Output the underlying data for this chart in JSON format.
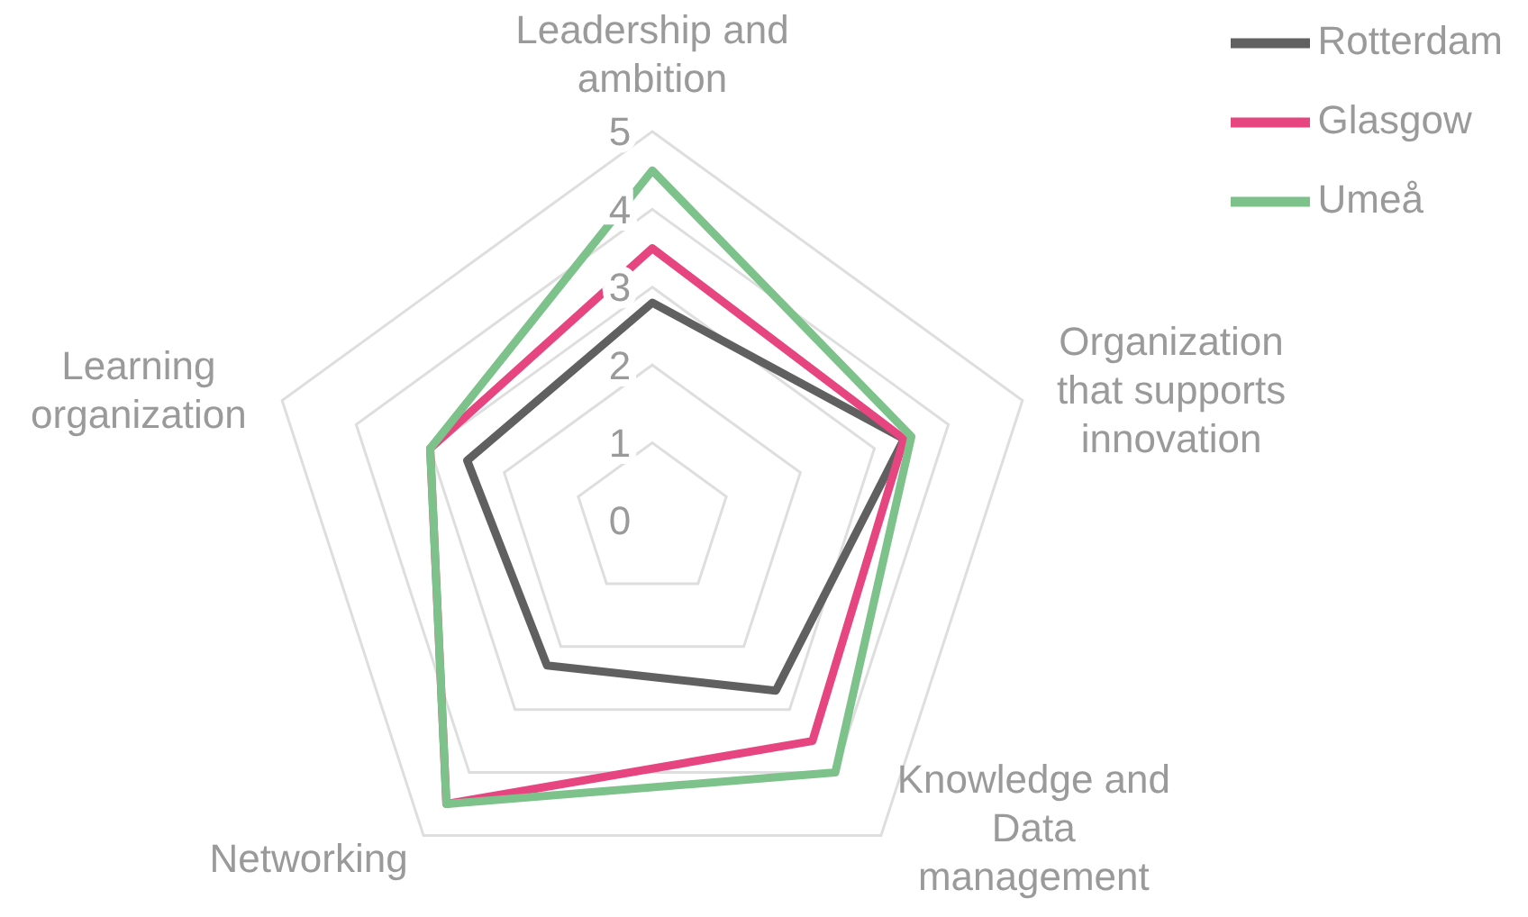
{
  "chart_data": {
    "type": "radar",
    "categories": [
      "Leadership and ambition",
      "Organization that supports innovation",
      "Knowledge and Data management",
      "Networking",
      "Learning organization"
    ],
    "series": [
      {
        "name": "Rotterdam",
        "color": "#606060",
        "values": [
          2.8,
          3.4,
          2.7,
          2.3,
          2.5
        ]
      },
      {
        "name": "Glasgow",
        "color": "#e6457f",
        "values": [
          3.5,
          3.4,
          3.5,
          4.5,
          3.0
        ]
      },
      {
        "name": "Umeå",
        "color": "#7dc18b",
        "values": [
          4.5,
          3.5,
          4.0,
          4.5,
          3.0
        ]
      }
    ],
    "ylim": [
      0,
      5
    ],
    "yticks": [
      0,
      1,
      2,
      3,
      4,
      5
    ],
    "grid": true,
    "legend": "top right",
    "marker": "none"
  }
}
